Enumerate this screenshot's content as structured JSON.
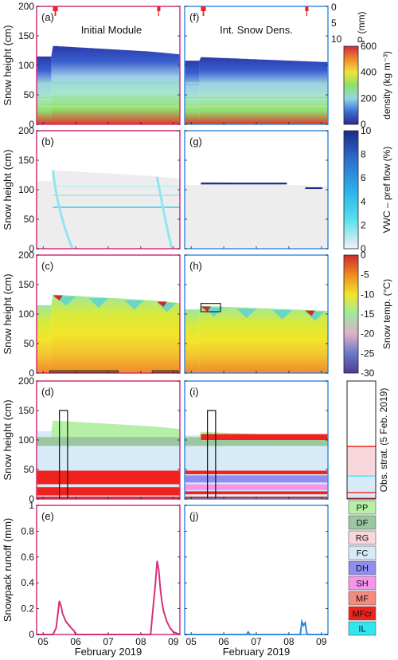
{
  "figure": {
    "title_left": "Initial Module",
    "title_right": "Int. Snow Dens.",
    "xlabel": "February 2019",
    "x_ticks": [
      "05",
      "06",
      "07",
      "08",
      "09"
    ],
    "snow_ylabel": "Snow height (cm)",
    "runoff_ylabel": "Snowpack runoff (mm)",
    "precip_ylabel": "P (mm)",
    "obs_label": "Obs. strat. (5 Feb. 2019)",
    "colors": {
      "left_frame": "#d2307a",
      "right_frame": "#3a8fe0",
      "left_runoff": "#d6317a",
      "right_runoff": "#2f86e0",
      "precip": "#e8242c"
    }
  },
  "chart_data": [
    {
      "type": "heatmap",
      "panels": [
        "(a)",
        "(f)"
      ],
      "variable": "density",
      "colorbar": {
        "label": "density (kg m⁻³)",
        "ticks": [
          "0",
          "200",
          "400",
          "600"
        ],
        "range": [
          0,
          600
        ],
        "colors": [
          "#2b2b8c",
          "#3f6fd6",
          "#8fd8e8",
          "#8ee06a",
          "#f2e23a",
          "#f08a2a",
          "#cf2a3a"
        ]
      },
      "y_ticks": [
        "0",
        "50",
        "100",
        "150",
        "200"
      ],
      "ylim": [
        0,
        200
      ],
      "precip_axis": {
        "label": "P (mm)",
        "ticks": [
          "0",
          "5",
          "10"
        ],
        "range": [
          0,
          10
        ]
      }
    },
    {
      "type": "heatmap",
      "panels": [
        "(b)",
        "(g)"
      ],
      "variable": "VWC – pref flow",
      "colorbar": {
        "label": "VWC – pref flow (%)",
        "ticks": [
          "0",
          "2",
          "4",
          "6",
          "8",
          "10"
        ],
        "range": [
          0,
          10
        ],
        "colors": [
          "#f2f2f2",
          "#55e0ee",
          "#2ab0e6",
          "#2f6ecf",
          "#1a2b8a"
        ]
      },
      "y_ticks": [
        "0",
        "50",
        "100",
        "150",
        "200"
      ],
      "ylim": [
        0,
        200
      ]
    },
    {
      "type": "heatmap",
      "panels": [
        "(c)",
        "(h)"
      ],
      "variable": "snow temperature",
      "colorbar": {
        "label": "Snow temp. (°C)",
        "ticks": [
          "-30",
          "-25",
          "-20",
          "-15",
          "-10",
          "-5",
          "0"
        ],
        "range": [
          -30,
          0
        ],
        "colors": [
          "#4a3f98",
          "#6a78c8",
          "#e0b0c8",
          "#9ee8a0",
          "#f2e62a",
          "#f08a20",
          "#cf2a2a"
        ]
      },
      "y_ticks": [
        "0",
        "50",
        "100",
        "150",
        "200"
      ],
      "ylim": [
        0,
        200
      ]
    },
    {
      "type": "heatmap",
      "panels": [
        "(d)",
        "(i)"
      ],
      "variable": "grain type",
      "y_ticks": [
        "0",
        "50",
        "100",
        "150",
        "200"
      ],
      "ylim": [
        0,
        200
      ],
      "legend": [
        {
          "code": "PP",
          "color": "#b6f0a6"
        },
        {
          "code": "DF",
          "color": "#9ac79e"
        },
        {
          "code": "RG",
          "color": "#f7d6dc"
        },
        {
          "code": "FC",
          "color": "#d6eaf7"
        },
        {
          "code": "DH",
          "color": "#8f8ef0"
        },
        {
          "code": "SH",
          "color": "#f497ec"
        },
        {
          "code": "MF",
          "color": "#f58a7e"
        },
        {
          "code": "MFcr",
          "color": "#f0221d"
        },
        {
          "code": "IL",
          "color": "#32e6f0"
        }
      ],
      "observed_layers_cm": [
        {
          "from": 0,
          "to": 2,
          "type": "MFcr"
        },
        {
          "from": 2,
          "to": 10,
          "type": "FC"
        },
        {
          "from": 10,
          "to": 12,
          "type": "MFcr"
        },
        {
          "from": 12,
          "to": 38,
          "type": "FC"
        },
        {
          "from": 38,
          "to": 40,
          "type": "IL"
        },
        {
          "from": 40,
          "to": 88,
          "type": "RG"
        },
        {
          "from": 88,
          "to": 90,
          "type": "MFcr"
        }
      ]
    },
    {
      "type": "line",
      "panels": [
        "(e)",
        "(j)"
      ],
      "ylabel": "Snowpack runoff (mm)",
      "y_ticks": [
        "0",
        "0.2",
        "0.4",
        "0.6",
        "0.8",
        "1"
      ],
      "ylim": [
        0,
        1
      ],
      "xlim": [
        4.8,
        9.2
      ],
      "x_ticks": [
        5,
        6,
        7,
        8,
        9
      ],
      "series": [
        {
          "x": [
            4.8,
            5.3,
            5.4,
            5.5,
            5.55,
            5.6,
            5.65,
            5.7,
            5.8,
            5.9,
            5.95,
            6.0,
            6.1,
            6.2,
            8.0,
            8.3,
            8.45,
            8.5,
            8.55,
            8.6,
            8.65,
            8.7,
            8.8,
            8.9,
            9.0,
            9.1,
            9.2
          ],
          "y": [
            0.0,
            0.0,
            0.05,
            0.26,
            0.22,
            0.16,
            0.13,
            0.1,
            0.07,
            0.04,
            0.03,
            0.0,
            0.0,
            0.0,
            0.0,
            0.0,
            0.4,
            0.57,
            0.5,
            0.35,
            0.25,
            0.18,
            0.1,
            0.05,
            0.02,
            0.01,
            0.0
          ]
        },
        {
          "x": [
            4.8,
            6.7,
            6.75,
            6.8,
            8.35,
            8.4,
            8.45,
            8.5,
            8.55,
            8.6,
            9.2
          ],
          "y": [
            0.0,
            0.0,
            0.02,
            0.0,
            0.0,
            0.1,
            0.07,
            0.09,
            0.01,
            0.0,
            0.0
          ]
        }
      ]
    }
  ]
}
